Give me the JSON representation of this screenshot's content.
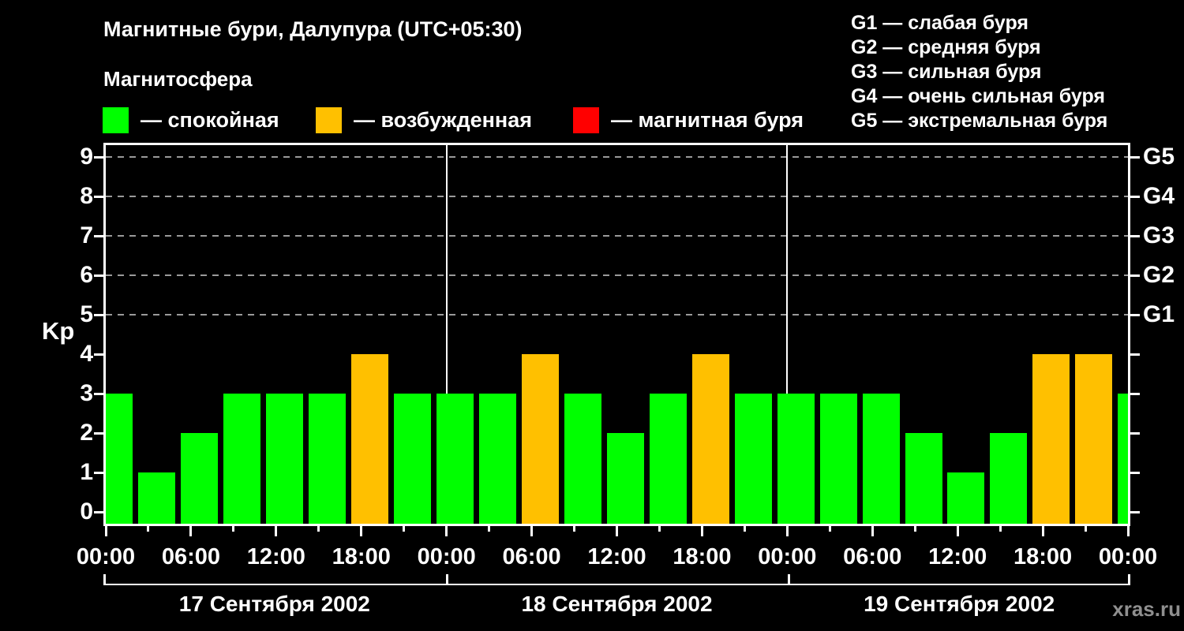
{
  "title": "Магнитные бури, Далупура (UTC+05:30)",
  "subtitle": "Магнитосфера",
  "legend": {
    "items": [
      {
        "label": "— спокойная",
        "color": "#00ff00"
      },
      {
        "label": "— возбужденная",
        "color": "#ffc000"
      },
      {
        "label": "— магнитная буря",
        "color": "#ff0000"
      }
    ]
  },
  "g_scale": {
    "items": [
      "G1 — слабая буря",
      "G2 — средняя буря",
      "G3 — сильная буря",
      "G4 — очень сильная буря",
      "G5 — экстремальная буря"
    ]
  },
  "watermark": "xras.ru",
  "chart_data": {
    "type": "bar",
    "title": "Магнитные бури, Далупура (UTC+05:30)",
    "ylabel": "Kp",
    "ylim": [
      0,
      9
    ],
    "y_ticks": [
      0,
      1,
      2,
      3,
      4,
      5,
      6,
      7,
      8,
      9
    ],
    "grid_values": [
      5,
      6,
      7,
      8,
      9
    ],
    "right_axis": [
      {
        "value": 5,
        "label": "G1"
      },
      {
        "value": 6,
        "label": "G2"
      },
      {
        "value": 7,
        "label": "G3"
      },
      {
        "value": 8,
        "label": "G4"
      },
      {
        "value": 9,
        "label": "G5"
      }
    ],
    "x_labels": [
      "00:00",
      "06:00",
      "12:00",
      "18:00",
      "00:00",
      "06:00",
      "12:00",
      "18:00",
      "00:00",
      "06:00",
      "12:00",
      "18:00",
      "00:00"
    ],
    "hours_per_bar": 3,
    "total_hours": 72,
    "days": [
      {
        "date": "17 Сентября 2002",
        "values": [
          3,
          1,
          2,
          3,
          3,
          3,
          4,
          3
        ]
      },
      {
        "date": "18 Сентября 2002",
        "values": [
          3,
          3,
          4,
          3,
          2,
          3,
          4,
          3
        ]
      },
      {
        "date": "19 Сентября 2002",
        "values": [
          3,
          3,
          3,
          2,
          1,
          2,
          4,
          4
        ]
      }
    ],
    "trailing_partial_bar_value": 3,
    "bar_colors": {
      "quiet": "#00ff00",
      "excited": "#ffc000",
      "storm": "#ff0000"
    },
    "grid": "dashed horizontal at Kp 5-9",
    "legend_position": "top"
  }
}
